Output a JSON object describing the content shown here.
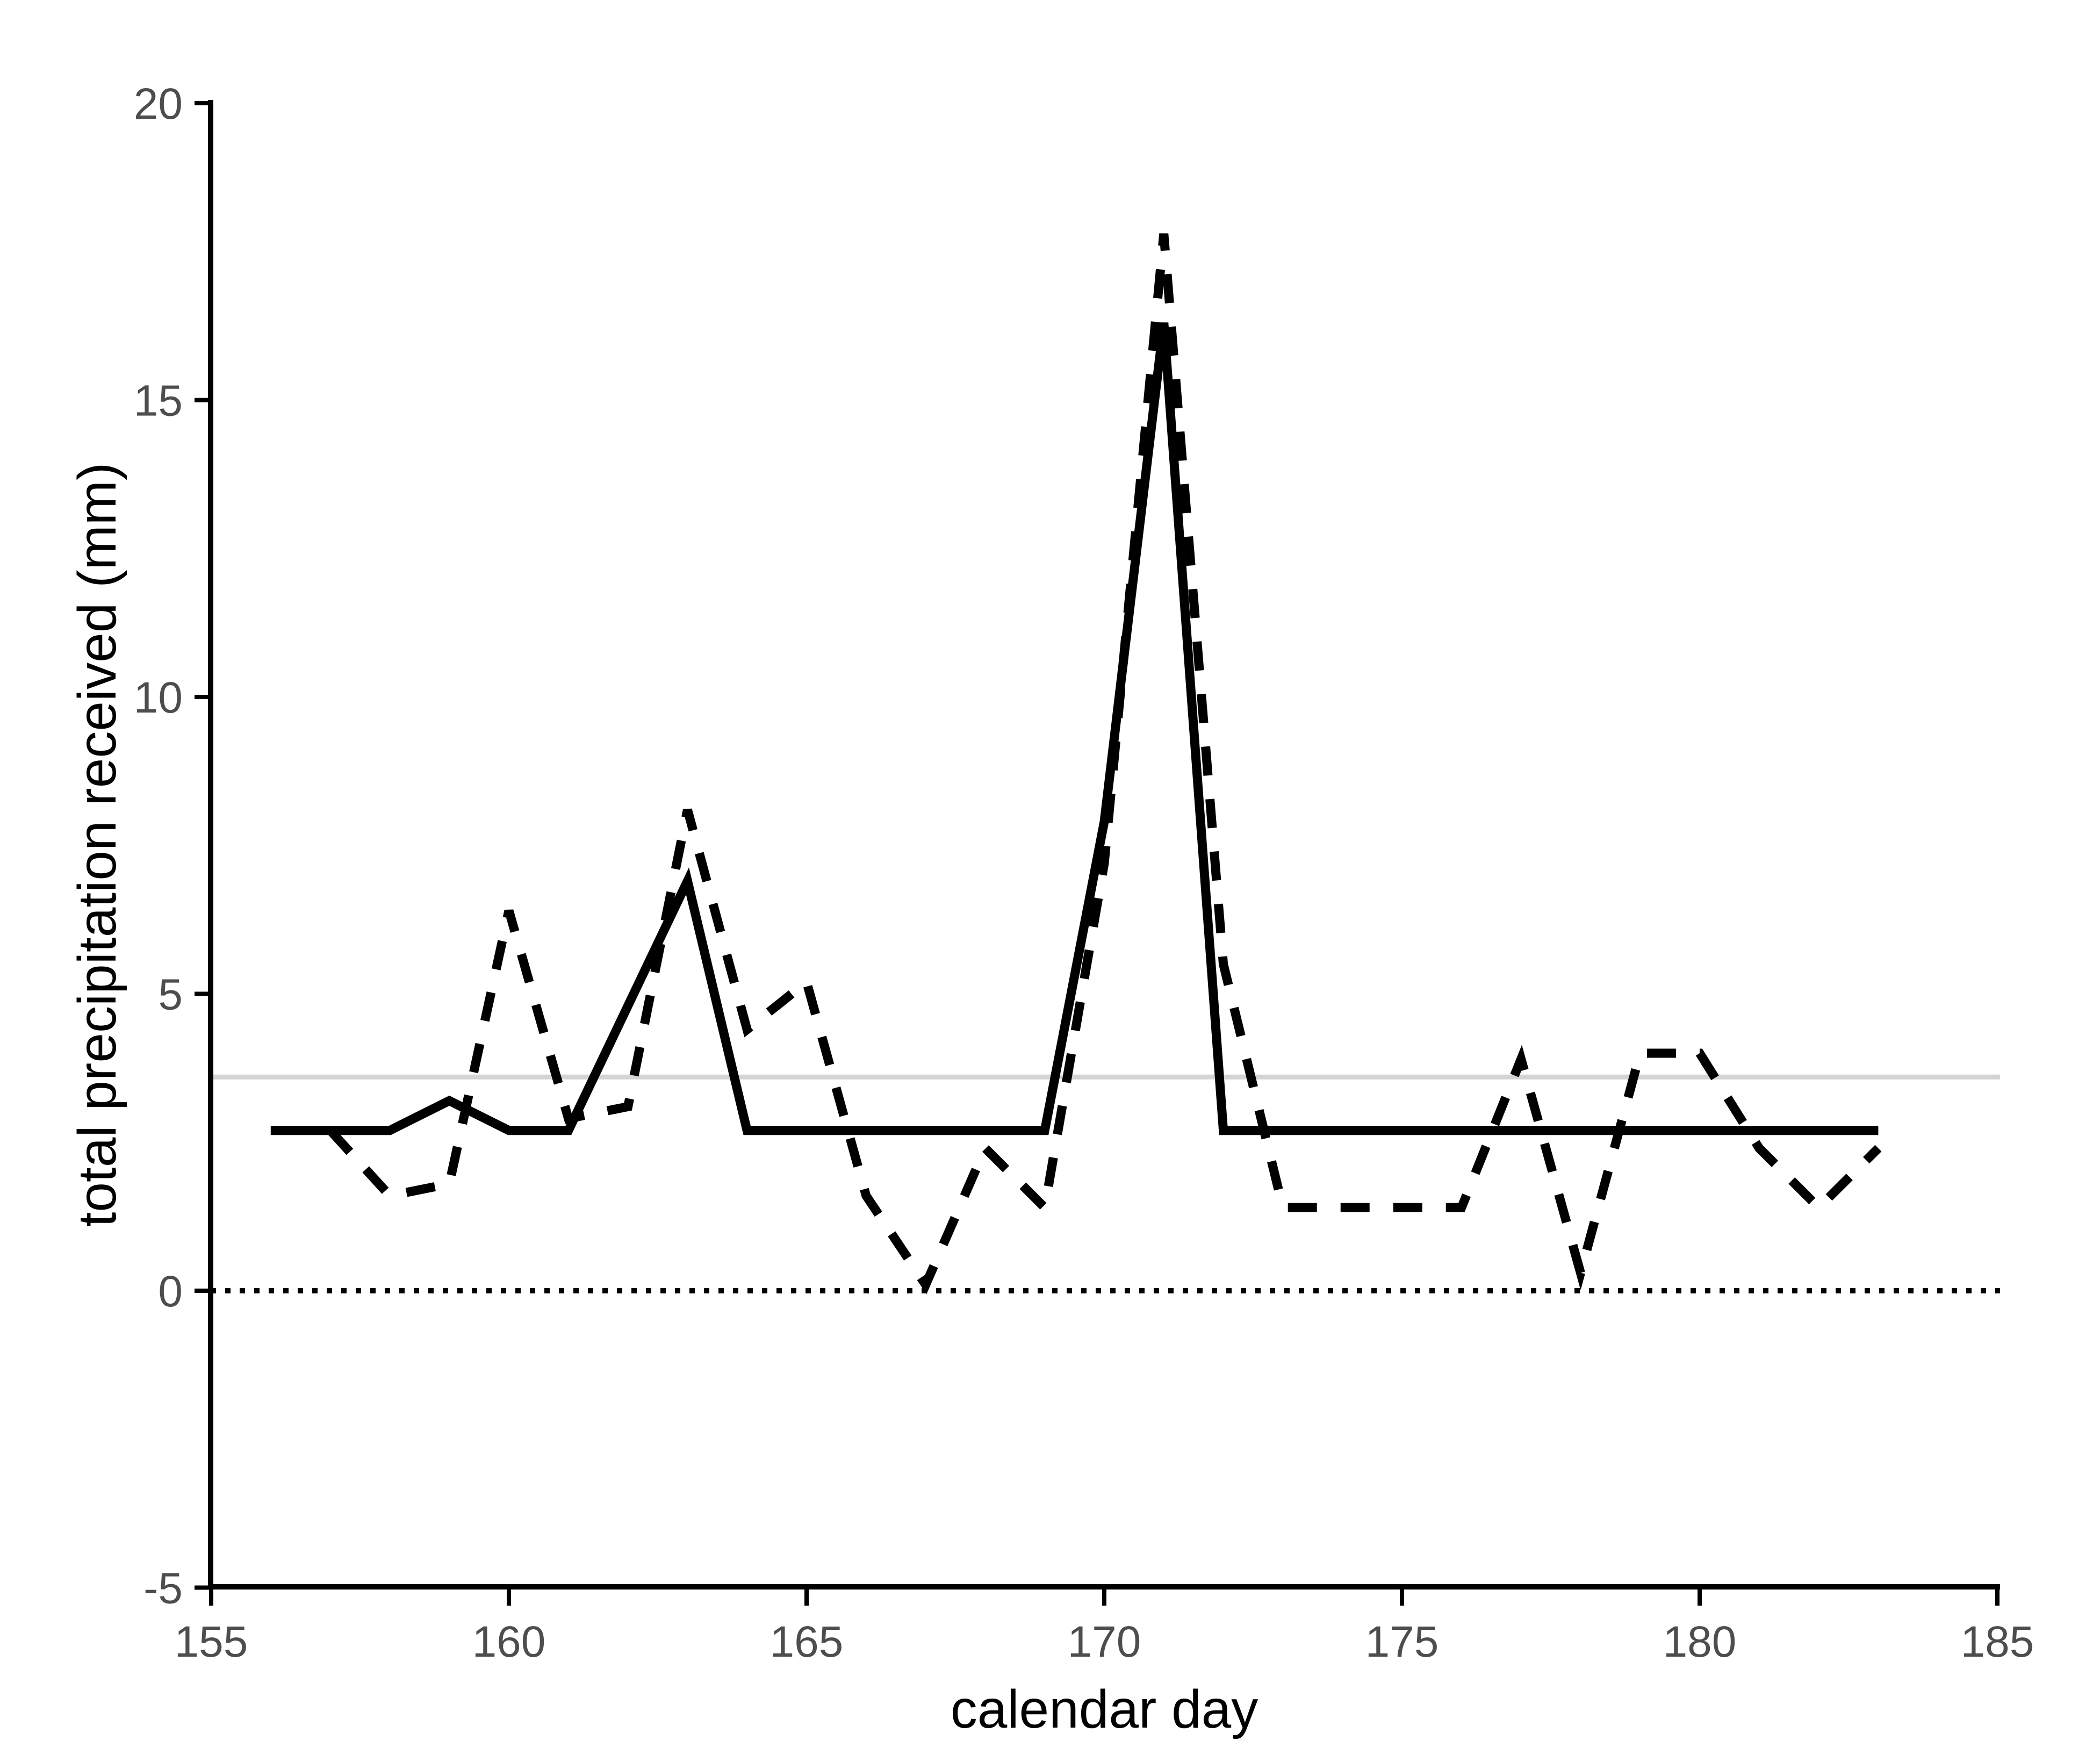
{
  "chart_data": {
    "type": "line",
    "title": "",
    "xlabel": "calendar day",
    "ylabel": "total precipitation received (mm)",
    "xlim": [
      155,
      185
    ],
    "ylim": [
      -5,
      20
    ],
    "xticks": [
      155,
      160,
      165,
      170,
      175,
      180,
      185
    ],
    "yticks": [
      -5,
      0,
      5,
      10,
      15,
      20
    ],
    "grid": false,
    "legend_position": "none",
    "background_color": "#ffffff",
    "axis_color": "#000000",
    "tick_label_color": "#4d4d4d",
    "reference_lines": [
      {
        "name": "zero-line",
        "y": 0,
        "style": "dotted",
        "color": "#000000"
      },
      {
        "name": "mean-precip-line",
        "y": 3.6,
        "style": "solid",
        "color": "#d4d4d4"
      }
    ],
    "series": [
      {
        "name": "solid-series",
        "style": "solid",
        "color": "#000000",
        "x": [
          156,
          157,
          158,
          159,
          160,
          161,
          162,
          163,
          164,
          165,
          166,
          167,
          168,
          169,
          170,
          171,
          172,
          173,
          174,
          175,
          176,
          177,
          178,
          179,
          180,
          181,
          182,
          183
        ],
        "y": [
          2.7,
          2.7,
          2.7,
          3.2,
          2.7,
          2.7,
          4.8,
          6.9,
          2.7,
          2.7,
          2.7,
          2.7,
          2.7,
          2.7,
          7.9,
          16.3,
          2.7,
          2.7,
          2.7,
          2.7,
          2.7,
          2.7,
          2.7,
          2.7,
          2.7,
          2.7,
          2.7,
          2.7
        ]
      },
      {
        "name": "dashed-series",
        "style": "dashed",
        "color": "#000000",
        "x": [
          157,
          158,
          159,
          160,
          161,
          162,
          163,
          164,
          165,
          166,
          167,
          168,
          169,
          170,
          171,
          172,
          173,
          174,
          175,
          176,
          177,
          178,
          179,
          180,
          181,
          182,
          183
        ],
        "y": [
          2.7,
          1.6,
          1.8,
          6.4,
          2.9,
          3.1,
          8.1,
          4.4,
          5.2,
          1.6,
          0.1,
          2.4,
          1.4,
          7.2,
          17.8,
          5.5,
          1.4,
          1.4,
          1.4,
          1.4,
          3.9,
          0.3,
          4.0,
          4.0,
          2.4,
          1.4,
          2.4
        ]
      }
    ]
  }
}
